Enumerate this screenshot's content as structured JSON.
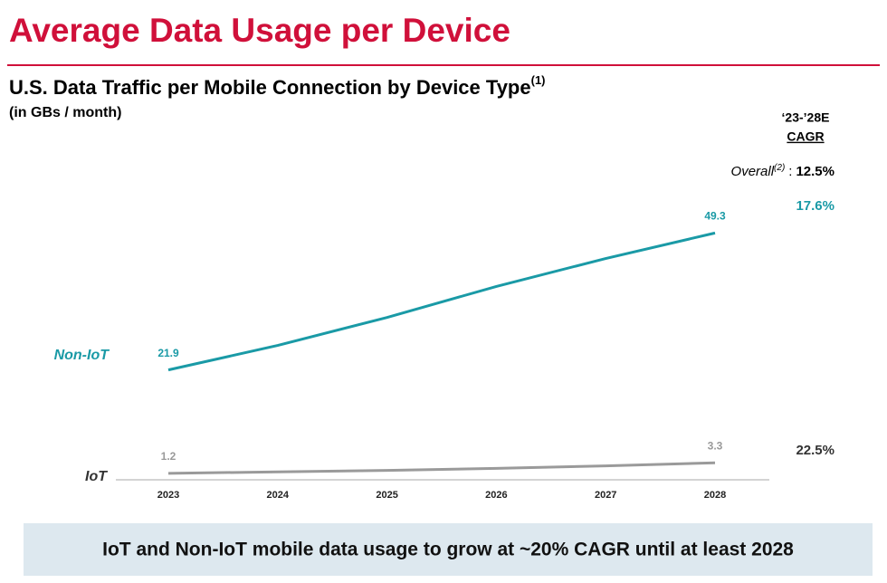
{
  "chart_data": {
    "type": "line",
    "title": "Average Data Usage per Device",
    "subtitle": "U.S. Data Traffic per Mobile Connection by Device Type",
    "subtitle_note": "(1)",
    "units": "(in GBs / month)",
    "cagr_header": [
      "‘23-’28E",
      "CAGR"
    ],
    "overall_label": "Overall",
    "overall_note": "(2)",
    "overall_sep": ":",
    "overall_value": "12.5%",
    "categories": [
      "2023",
      "2024",
      "2025",
      "2026",
      "2027",
      "2028"
    ],
    "series": [
      {
        "name": "Non-IoT",
        "color": "#1a9aa6",
        "values": [
          21.9,
          26.8,
          32.4,
          38.6,
          44.2,
          49.3
        ],
        "cagr": "17.6%"
      },
      {
        "name": "IoT",
        "color": "#9a9a9a",
        "values": [
          1.2,
          1.5,
          1.8,
          2.2,
          2.7,
          3.3
        ],
        "cagr": "22.5%"
      }
    ],
    "footer": "IoT and Non-IoT mobile data usage to grow at ~20% CAGR until at least 2028"
  }
}
